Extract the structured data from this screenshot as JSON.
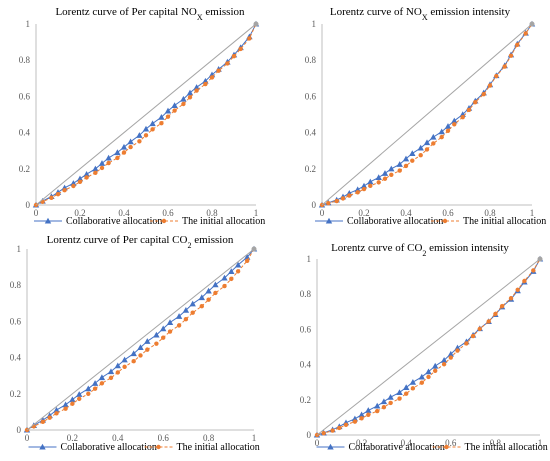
{
  "colors": {
    "collaborative": "#4472C4",
    "initial": "#ED7D31",
    "equality": "#A5A5A5",
    "axis": "#808080"
  },
  "chart_data": [
    {
      "type": "line",
      "title": {
        "prefix": "Lorentz curve of Per capital NO",
        "sub": "X",
        "suffix": " emission"
      },
      "xticks": [
        "0",
        "0.2",
        "0.4",
        "0.6",
        "0.8",
        "1"
      ],
      "yticks": [
        "0",
        "0.2",
        "0.4",
        "0.6",
        "0.8",
        "1"
      ],
      "xlim": [
        0,
        1
      ],
      "ylim": [
        0,
        1
      ],
      "legend_position": "bottom",
      "series": [
        {
          "name": "Collaborative allocation",
          "marker": "triangle",
          "style": "solid",
          "x": [
            0,
            0.03,
            0.07,
            0.1,
            0.13,
            0.17,
            0.2,
            0.23,
            0.27,
            0.3,
            0.33,
            0.37,
            0.4,
            0.43,
            0.47,
            0.5,
            0.53,
            0.57,
            0.6,
            0.63,
            0.67,
            0.7,
            0.73,
            0.77,
            0.8,
            0.83,
            0.87,
            0.9,
            0.93,
            0.97,
            1
          ],
          "y": [
            0,
            0.022,
            0.047,
            0.07,
            0.095,
            0.12,
            0.145,
            0.17,
            0.2,
            0.23,
            0.26,
            0.29,
            0.32,
            0.35,
            0.385,
            0.42,
            0.45,
            0.485,
            0.52,
            0.55,
            0.585,
            0.62,
            0.65,
            0.685,
            0.72,
            0.75,
            0.79,
            0.83,
            0.87,
            0.93,
            1
          ]
        },
        {
          "name": "The initial allocation",
          "marker": "circle",
          "style": "dashed",
          "x": [
            0,
            0.03,
            0.07,
            0.1,
            0.13,
            0.17,
            0.2,
            0.23,
            0.27,
            0.3,
            0.33,
            0.37,
            0.4,
            0.43,
            0.47,
            0.5,
            0.53,
            0.57,
            0.6,
            0.63,
            0.67,
            0.7,
            0.73,
            0.77,
            0.8,
            0.83,
            0.87,
            0.9,
            0.93,
            0.97,
            1
          ],
          "y": [
            0,
            0.018,
            0.04,
            0.06,
            0.082,
            0.105,
            0.128,
            0.152,
            0.178,
            0.205,
            0.232,
            0.26,
            0.29,
            0.32,
            0.352,
            0.385,
            0.418,
            0.452,
            0.488,
            0.522,
            0.558,
            0.595,
            0.632,
            0.668,
            0.705,
            0.742,
            0.782,
            0.822,
            0.862,
            0.92,
            1
          ]
        },
        {
          "name": "",
          "marker": "none",
          "style": "equality",
          "x": [
            0,
            1
          ],
          "y": [
            0,
            1
          ]
        }
      ]
    },
    {
      "type": "line",
      "title": {
        "prefix": "Lorentz curve of NO",
        "sub": "X",
        "suffix": " emission intensity"
      },
      "xticks": [
        "0",
        "0.2",
        "0.4",
        "0.6",
        "0.8",
        "1"
      ],
      "yticks": [
        "0",
        "0.2",
        "0.4",
        "0.6",
        "0.8",
        "1"
      ],
      "xlim": [
        0,
        1
      ],
      "ylim": [
        0,
        1
      ],
      "legend_position": "bottom",
      "series": [
        {
          "name": "Collaborative allocation",
          "marker": "triangle",
          "style": "solid",
          "x": [
            0,
            0.03,
            0.07,
            0.1,
            0.13,
            0.17,
            0.2,
            0.23,
            0.27,
            0.3,
            0.33,
            0.37,
            0.4,
            0.43,
            0.47,
            0.5,
            0.53,
            0.57,
            0.6,
            0.63,
            0.67,
            0.7,
            0.73,
            0.77,
            0.8,
            0.83,
            0.87,
            0.9,
            0.93,
            0.97,
            1
          ],
          "y": [
            0,
            0.012,
            0.028,
            0.045,
            0.065,
            0.085,
            0.105,
            0.128,
            0.152,
            0.175,
            0.2,
            0.225,
            0.255,
            0.285,
            0.315,
            0.345,
            0.375,
            0.405,
            0.435,
            0.465,
            0.5,
            0.535,
            0.575,
            0.62,
            0.665,
            0.715,
            0.77,
            0.83,
            0.89,
            0.95,
            1
          ]
        },
        {
          "name": "The initial allocation",
          "marker": "circle",
          "style": "dashed",
          "x": [
            0,
            0.03,
            0.07,
            0.1,
            0.13,
            0.17,
            0.2,
            0.23,
            0.27,
            0.3,
            0.33,
            0.37,
            0.4,
            0.43,
            0.47,
            0.5,
            0.53,
            0.57,
            0.6,
            0.63,
            0.67,
            0.7,
            0.73,
            0.77,
            0.8,
            0.83,
            0.87,
            0.9,
            0.93,
            0.97,
            1
          ],
          "y": [
            0,
            0.01,
            0.022,
            0.036,
            0.052,
            0.07,
            0.088,
            0.106,
            0.125,
            0.145,
            0.167,
            0.19,
            0.216,
            0.245,
            0.275,
            0.307,
            0.34,
            0.375,
            0.41,
            0.446,
            0.485,
            0.525,
            0.568,
            0.612,
            0.66,
            0.712,
            0.765,
            0.825,
            0.885,
            0.948,
            1
          ]
        },
        {
          "name": "",
          "marker": "none",
          "style": "equality",
          "x": [
            0,
            1
          ],
          "y": [
            0,
            1
          ]
        }
      ]
    },
    {
      "type": "line",
      "title": {
        "prefix": "Lorentz curve of Per capital CO",
        "sub": "2",
        "suffix": " emission"
      },
      "xticks": [
        "0",
        "0.2",
        "0.4",
        "0.6",
        "0.8",
        "1"
      ],
      "yticks": [
        "0",
        "0.2",
        "0.4",
        "0.6",
        "0.8",
        "1"
      ],
      "xlim": [
        0,
        1
      ],
      "ylim": [
        0,
        1
      ],
      "legend_position": "bottom",
      "series": [
        {
          "name": "Collaborative allocation",
          "marker": "triangle",
          "style": "solid",
          "x": [
            0,
            0.03,
            0.07,
            0.1,
            0.13,
            0.17,
            0.2,
            0.23,
            0.27,
            0.3,
            0.33,
            0.37,
            0.4,
            0.43,
            0.47,
            0.5,
            0.53,
            0.57,
            0.6,
            0.63,
            0.67,
            0.7,
            0.73,
            0.77,
            0.8,
            0.83,
            0.87,
            0.9,
            0.93,
            0.97,
            1
          ],
          "y": [
            0,
            0.025,
            0.055,
            0.08,
            0.11,
            0.14,
            0.168,
            0.197,
            0.228,
            0.258,
            0.29,
            0.323,
            0.355,
            0.388,
            0.422,
            0.456,
            0.49,
            0.525,
            0.56,
            0.594,
            0.628,
            0.662,
            0.697,
            0.732,
            0.768,
            0.803,
            0.84,
            0.876,
            0.912,
            0.955,
            1
          ]
        },
        {
          "name": "The initial allocation",
          "marker": "circle",
          "style": "dashed",
          "x": [
            0,
            0.03,
            0.07,
            0.1,
            0.13,
            0.17,
            0.2,
            0.23,
            0.27,
            0.3,
            0.33,
            0.37,
            0.4,
            0.43,
            0.47,
            0.5,
            0.53,
            0.57,
            0.6,
            0.63,
            0.67,
            0.7,
            0.73,
            0.77,
            0.8,
            0.83,
            0.87,
            0.9,
            0.93,
            0.97,
            1
          ],
          "y": [
            0,
            0.02,
            0.045,
            0.068,
            0.092,
            0.118,
            0.145,
            0.172,
            0.2,
            0.228,
            0.258,
            0.288,
            0.318,
            0.349,
            0.38,
            0.412,
            0.444,
            0.477,
            0.51,
            0.544,
            0.578,
            0.612,
            0.648,
            0.684,
            0.72,
            0.757,
            0.795,
            0.835,
            0.877,
            0.935,
            1
          ]
        },
        {
          "name": "",
          "marker": "none",
          "style": "equality",
          "x": [
            0,
            1
          ],
          "y": [
            0,
            1
          ]
        }
      ]
    },
    {
      "type": "line",
      "title": {
        "prefix": "Lorentz curve of CO",
        "sub": "2",
        "suffix": " emission intensity"
      },
      "xticks": [
        "0",
        "0.2",
        "0.4",
        "0.6",
        "0.8",
        "1"
      ],
      "yticks": [
        "0",
        "0.2",
        "0.4",
        "0.6",
        "0.8",
        "1"
      ],
      "xlim": [
        0,
        1
      ],
      "ylim": [
        0,
        1
      ],
      "legend_position": "bottom",
      "series": [
        {
          "name": "Collaborative allocation",
          "marker": "triangle",
          "style": "solid",
          "x": [
            0,
            0.03,
            0.07,
            0.1,
            0.13,
            0.17,
            0.2,
            0.23,
            0.27,
            0.3,
            0.33,
            0.37,
            0.4,
            0.43,
            0.47,
            0.5,
            0.53,
            0.57,
            0.6,
            0.63,
            0.67,
            0.7,
            0.73,
            0.77,
            0.8,
            0.83,
            0.87,
            0.9,
            0.93,
            0.97,
            1
          ],
          "y": [
            0,
            0.012,
            0.03,
            0.048,
            0.07,
            0.092,
            0.115,
            0.14,
            0.165,
            0.19,
            0.215,
            0.242,
            0.27,
            0.3,
            0.33,
            0.36,
            0.392,
            0.425,
            0.46,
            0.495,
            0.53,
            0.568,
            0.605,
            0.645,
            0.685,
            0.728,
            0.772,
            0.82,
            0.87,
            0.93,
            1
          ]
        },
        {
          "name": "The initial allocation",
          "marker": "circle",
          "style": "dashed",
          "x": [
            0,
            0.03,
            0.07,
            0.1,
            0.13,
            0.17,
            0.2,
            0.23,
            0.27,
            0.3,
            0.33,
            0.37,
            0.4,
            0.43,
            0.47,
            0.5,
            0.53,
            0.57,
            0.6,
            0.63,
            0.67,
            0.7,
            0.73,
            0.77,
            0.8,
            0.83,
            0.87,
            0.9,
            0.93,
            0.97,
            1
          ],
          "y": [
            0,
            0.01,
            0.025,
            0.04,
            0.058,
            0.076,
            0.095,
            0.115,
            0.136,
            0.158,
            0.182,
            0.207,
            0.235,
            0.265,
            0.297,
            0.33,
            0.365,
            0.402,
            0.44,
            0.48,
            0.52,
            0.562,
            0.603,
            0.645,
            0.688,
            0.732,
            0.777,
            0.825,
            0.875,
            0.935,
            1
          ]
        },
        {
          "name": "",
          "marker": "none",
          "style": "equality",
          "x": [
            0,
            1
          ],
          "y": [
            0,
            1
          ]
        }
      ]
    }
  ]
}
